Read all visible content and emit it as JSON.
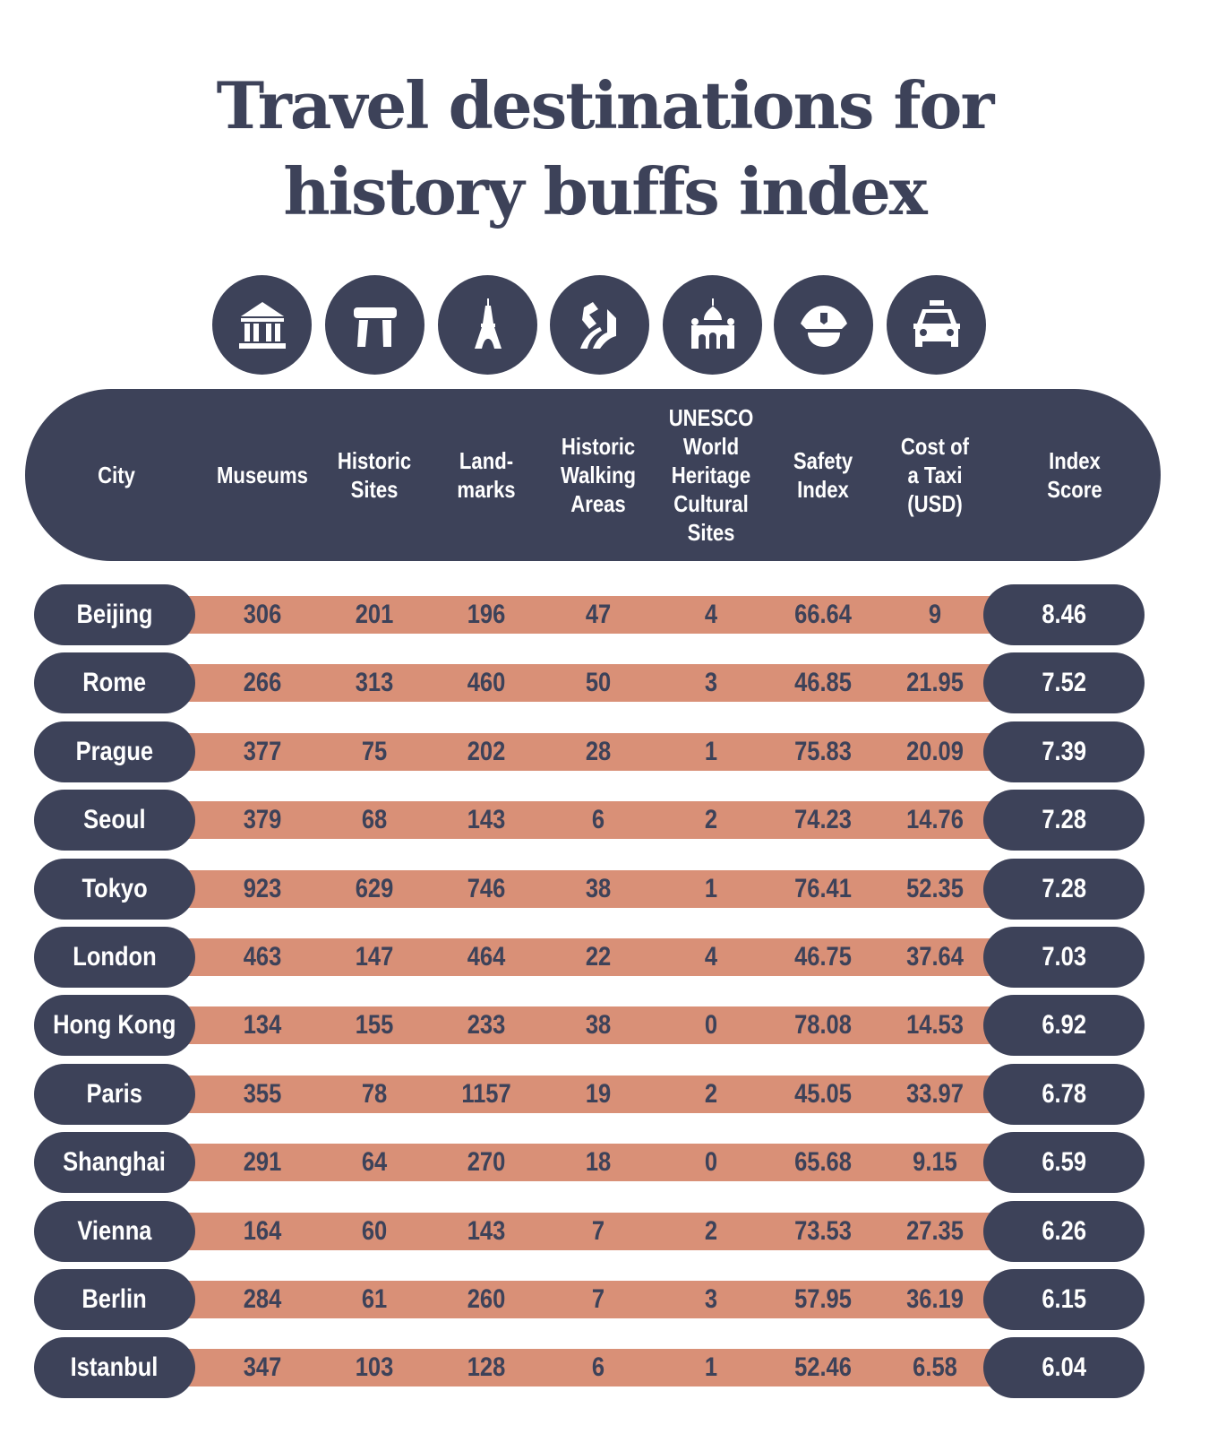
{
  "title_line1": "Travel destinations for",
  "title_line2": "history buffs index",
  "colors": {
    "dark": "#3d4259",
    "accent": "#d99077",
    "background": "#ffffff"
  },
  "icons": [
    "museum-icon",
    "stonehenge-icon",
    "eiffel-tower-icon",
    "walking-path-icon",
    "cathedral-icon",
    "police-cap-icon",
    "taxi-icon"
  ],
  "chart_data": {
    "type": "table",
    "title": "Travel destinations for history buffs index",
    "columns": [
      "City",
      "Museums",
      "Historic\nSites",
      "Land-\nmarks",
      "Historic\nWalking\nAreas",
      "UNESCO\nWorld\nHeritage\nCultural\nSites",
      "Safety\nIndex",
      "Cost of\na Taxi\n(USD)",
      "Index\nScore"
    ],
    "rows": [
      [
        "Beijing",
        "306",
        "201",
        "196",
        "47",
        "4",
        "66.64",
        "9",
        "8.46"
      ],
      [
        "Rome",
        "266",
        "313",
        "460",
        "50",
        "3",
        "46.85",
        "21.95",
        "7.52"
      ],
      [
        "Prague",
        "377",
        "75",
        "202",
        "28",
        "1",
        "75.83",
        "20.09",
        "7.39"
      ],
      [
        "Seoul",
        "379",
        "68",
        "143",
        "6",
        "2",
        "74.23",
        "14.76",
        "7.28"
      ],
      [
        "Tokyo",
        "923",
        "629",
        "746",
        "38",
        "1",
        "76.41",
        "52.35",
        "7.28"
      ],
      [
        "London",
        "463",
        "147",
        "464",
        "22",
        "4",
        "46.75",
        "37.64",
        "7.03"
      ],
      [
        "Hong Kong",
        "134",
        "155",
        "233",
        "38",
        "0",
        "78.08",
        "14.53",
        "6.92"
      ],
      [
        "Paris",
        "355",
        "78",
        "1157",
        "19",
        "2",
        "45.05",
        "33.97",
        "6.78"
      ],
      [
        "Shanghai",
        "291",
        "64",
        "270",
        "18",
        "0",
        "65.68",
        "9.15",
        "6.59"
      ],
      [
        "Vienna",
        "164",
        "60",
        "143",
        "7",
        "2",
        "73.53",
        "27.35",
        "6.26"
      ],
      [
        "Berlin",
        "284",
        "61",
        "260",
        "7",
        "3",
        "57.95",
        "36.19",
        "6.15"
      ],
      [
        "Istanbul",
        "347",
        "103",
        "128",
        "6",
        "1",
        "52.46",
        "6.58",
        "6.04"
      ]
    ]
  }
}
